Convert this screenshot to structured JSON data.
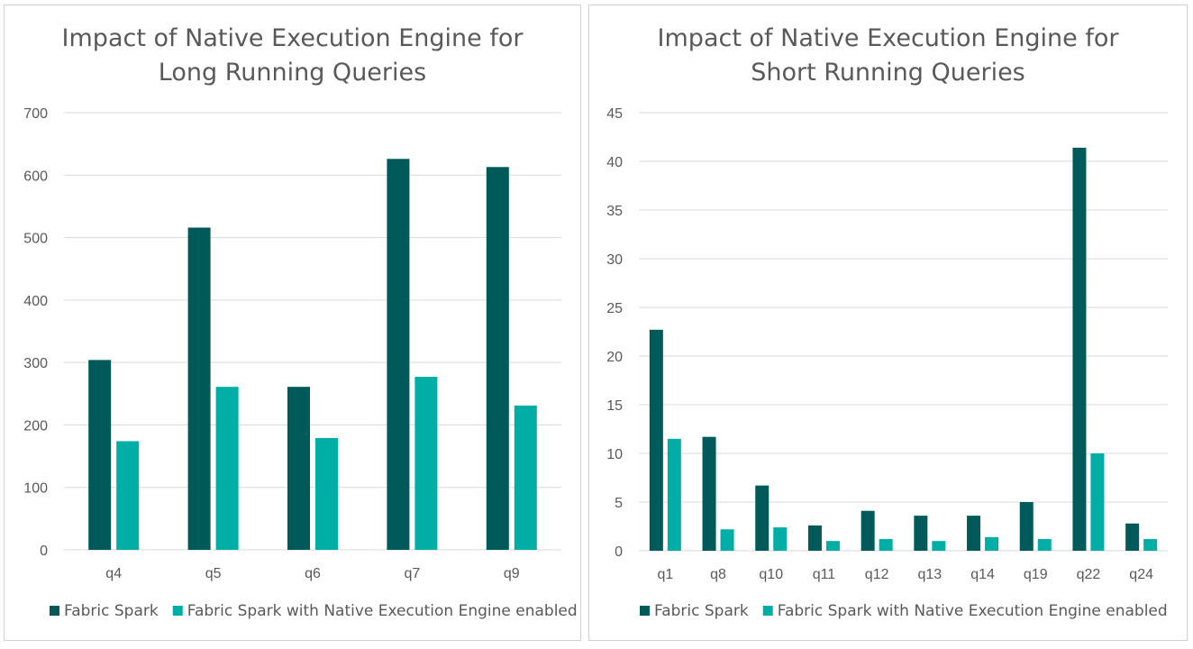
{
  "colors": {
    "series1": "#005a5a",
    "series2": "#00aea6",
    "grid": "#d9d9d9",
    "text": "#595959"
  },
  "chart_data": [
    {
      "type": "bar",
      "title_lines": [
        "Impact of Native Execution Engine for",
        "Long Running Queries"
      ],
      "categories": [
        "q4",
        "q5",
        "q6",
        "q7",
        "q9"
      ],
      "series": [
        {
          "name": "Fabric Spark",
          "values": [
            304,
            516,
            261,
            626,
            613
          ]
        },
        {
          "name": "Fabric Spark with Native Execution Engine enabled",
          "values": [
            174,
            261,
            179,
            277,
            231
          ]
        }
      ],
      "ylim": [
        0,
        700
      ],
      "yticks": [
        0,
        100,
        200,
        300,
        400,
        500,
        600,
        700
      ],
      "grid": true,
      "legend": "bottom"
    },
    {
      "type": "bar",
      "title_lines": [
        "Impact of Native Execution Engine for",
        "Short Running Queries"
      ],
      "categories": [
        "q1",
        "q8",
        "q10",
        "q11",
        "q12",
        "q13",
        "q14",
        "q19",
        "q22",
        "q24"
      ],
      "series": [
        {
          "name": "Fabric Spark",
          "values": [
            22.7,
            11.7,
            6.7,
            2.6,
            4.1,
            3.6,
            3.6,
            5.0,
            41.4,
            2.8
          ]
        },
        {
          "name": "Fabric Spark with Native Execution Engine enabled",
          "values": [
            11.5,
            2.2,
            2.4,
            1.0,
            1.2,
            1.0,
            1.4,
            1.2,
            10.0,
            1.2
          ]
        }
      ],
      "ylim": [
        0,
        45
      ],
      "yticks": [
        0,
        5,
        10,
        15,
        20,
        25,
        30,
        35,
        40,
        45
      ],
      "grid": true,
      "legend": "bottom"
    }
  ]
}
